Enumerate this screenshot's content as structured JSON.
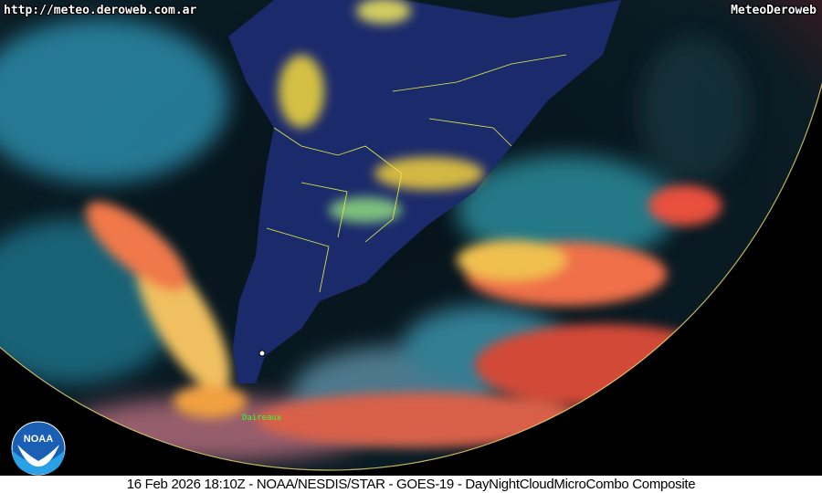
{
  "overlay": {
    "url": "http://meteo.deroweb.com.ar",
    "brand": "MeteoDeroweb",
    "place_label": "Daireaux"
  },
  "logo": {
    "text": "NOAA",
    "colors": {
      "blue": "#1a5fb4",
      "light": "#2aa0e6"
    }
  },
  "caption": "16 Feb 2026 18:10Z - NOAA/NESDIS/STAR - GOES-19 - DayNightCloudMicroCombo Composite",
  "colors": {
    "space": "#000000",
    "land": "#1b2a6b",
    "borders": "#e8f040",
    "clouds_cyan": "#3cc8d8",
    "clouds_red": "#f0553c",
    "clouds_yellow": "#f0e040"
  }
}
